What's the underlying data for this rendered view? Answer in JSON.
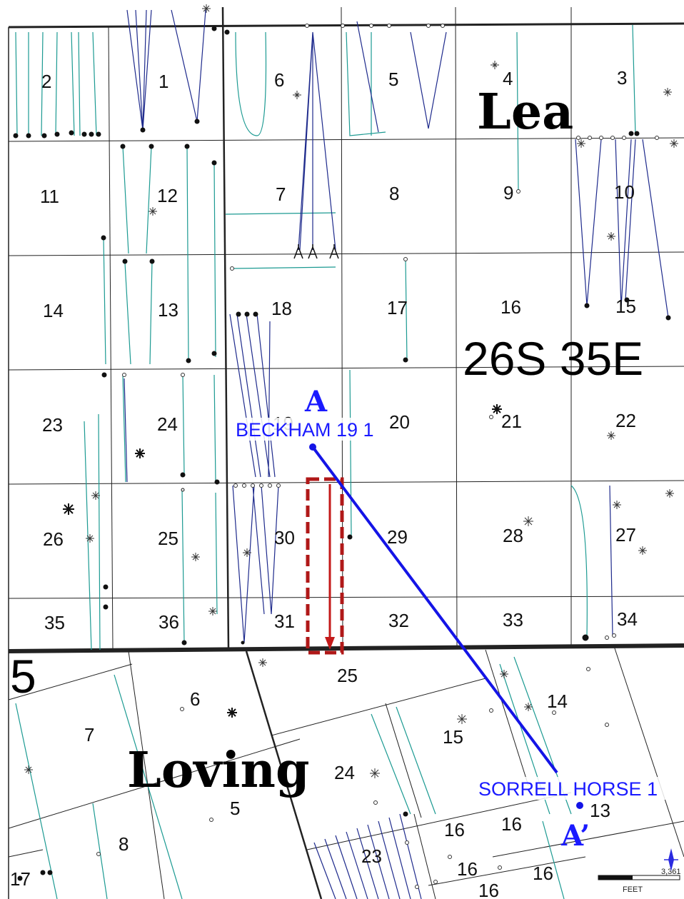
{
  "counties": {
    "north": "Lea",
    "south": "Loving"
  },
  "township_label": "26S 35E",
  "south_township_number": "5",
  "north_sections": [
    {
      "n": "2"
    },
    {
      "n": "1"
    },
    {
      "n": "6"
    },
    {
      "n": "5"
    },
    {
      "n": "4"
    },
    {
      "n": "3"
    },
    {
      "n": "11"
    },
    {
      "n": "12"
    },
    {
      "n": "7"
    },
    {
      "n": "8"
    },
    {
      "n": "9"
    },
    {
      "n": "10"
    },
    {
      "n": "14"
    },
    {
      "n": "13"
    },
    {
      "n": "18"
    },
    {
      "n": "17"
    },
    {
      "n": "16"
    },
    {
      "n": "15"
    },
    {
      "n": "23"
    },
    {
      "n": "24"
    },
    {
      "n": "19"
    },
    {
      "n": "20"
    },
    {
      "n": "21"
    },
    {
      "n": "22"
    },
    {
      "n": "26"
    },
    {
      "n": "25"
    },
    {
      "n": "30"
    },
    {
      "n": "29"
    },
    {
      "n": "28"
    },
    {
      "n": "27"
    },
    {
      "n": "35"
    },
    {
      "n": "36"
    },
    {
      "n": "31"
    },
    {
      "n": "32"
    },
    {
      "n": "33"
    },
    {
      "n": "34"
    }
  ],
  "south_sections": [
    {
      "n": "25"
    },
    {
      "n": "6"
    },
    {
      "n": "14"
    },
    {
      "n": "7"
    },
    {
      "n": "15"
    },
    {
      "n": "24"
    },
    {
      "n": "5"
    },
    {
      "n": "13"
    },
    {
      "n": "16"
    },
    {
      "n": "16"
    },
    {
      "n": "8"
    },
    {
      "n": "23"
    },
    {
      "n": "16"
    },
    {
      "n": "16"
    },
    {
      "n": "16"
    },
    {
      "n": "17"
    }
  ],
  "wells": {
    "start": {
      "name": "BECKHAM 19 1",
      "marker": "A"
    },
    "end": {
      "name": "SORRELL HORSE 1",
      "marker": "A’"
    }
  },
  "scale_bar": {
    "value": "3,361",
    "unit": "FEET"
  },
  "icons": [
    "oil-well-symbol",
    "north-arrow-icon"
  ],
  "colors": {
    "cross_section_line": "#1414e6",
    "wellbore_teal": "#1c9a92",
    "wellbore_navy": "#1e2a8c",
    "highlight_box": "#b01818",
    "grid": "#222222"
  }
}
